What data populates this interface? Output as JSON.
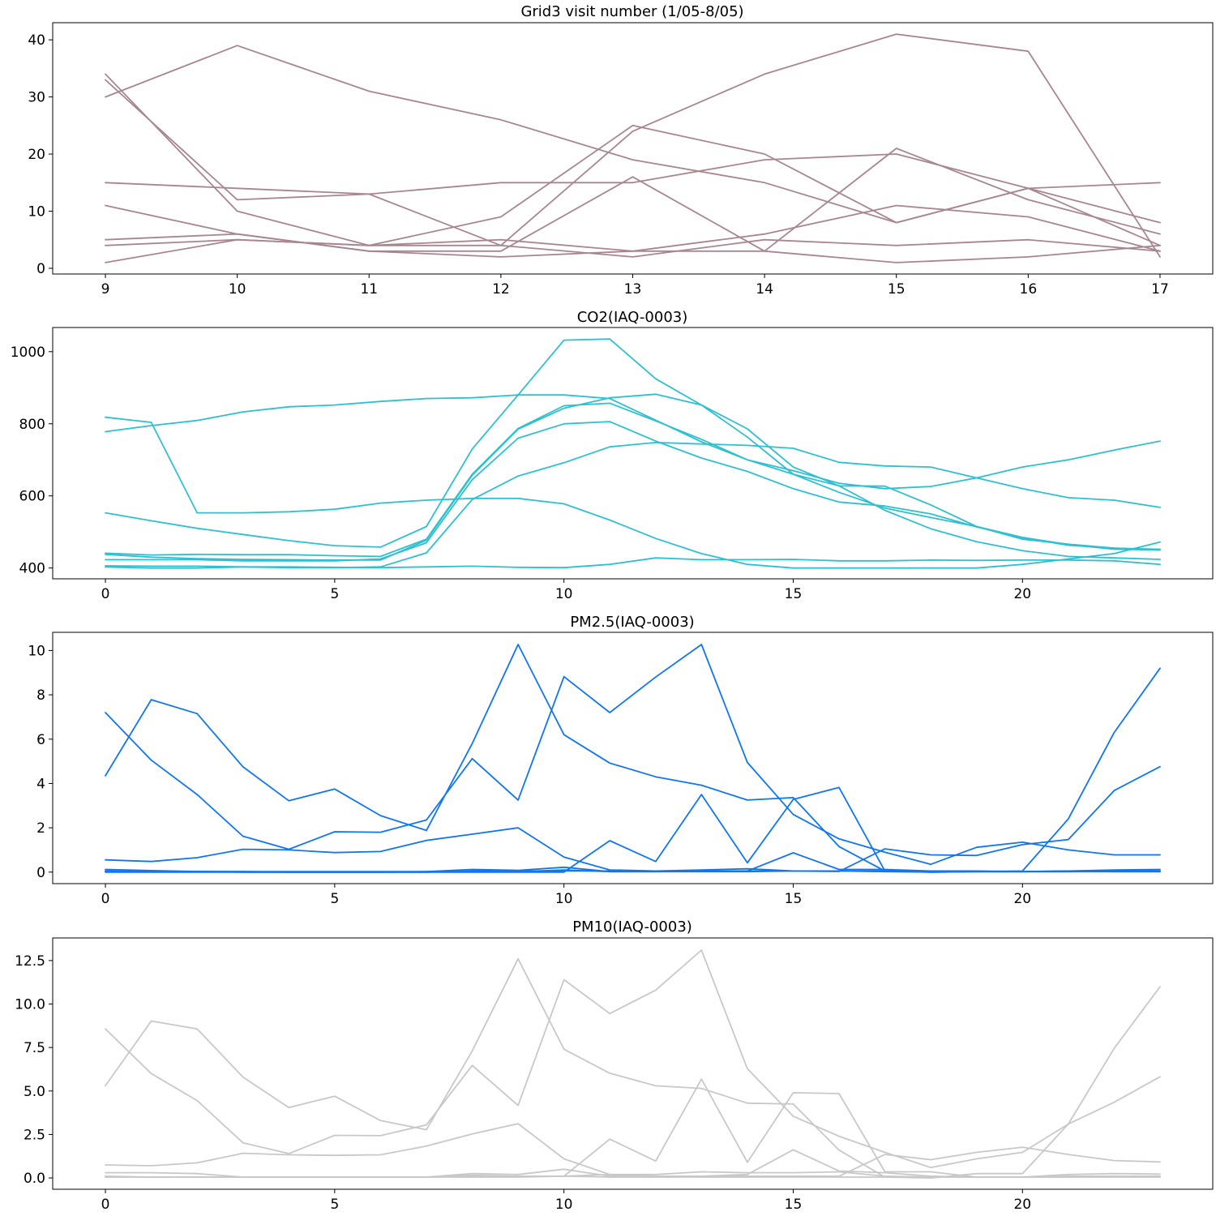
{
  "chart_data": [
    {
      "type": "line",
      "title": "Grid3 visit number (1/05-8/05)",
      "xlabel": "",
      "ylabel": "",
      "color": "#a8868f",
      "x": [
        9,
        10,
        11,
        12,
        13,
        14,
        15,
        16,
        17
      ],
      "xlim": [
        8.6,
        17.4
      ],
      "ylim": [
        -1,
        43
      ],
      "xticks": [
        "9",
        "10",
        "11",
        "12",
        "13",
        "14",
        "15",
        "16",
        "17"
      ],
      "yticks": [
        "0",
        "10",
        "20",
        "30",
        "40"
      ],
      "grid": false,
      "series": [
        {
          "values": [
            30,
            39,
            31,
            26,
            19,
            15,
            8,
            14,
            15
          ]
        },
        {
          "values": [
            34,
            10,
            4,
            9,
            25,
            20,
            8,
            14,
            4
          ]
        },
        {
          "values": [
            33,
            12,
            13,
            4,
            24,
            34,
            41,
            38,
            2
          ]
        },
        {
          "values": [
            15,
            14,
            13,
            15,
            15,
            19,
            20,
            14,
            8
          ]
        },
        {
          "values": [
            11,
            6,
            3,
            3,
            16,
            3,
            21,
            12,
            6
          ]
        },
        {
          "values": [
            5,
            6,
            3,
            2,
            3,
            6,
            11,
            9,
            3
          ]
        },
        {
          "values": [
            4,
            5,
            4,
            5,
            3,
            3,
            1,
            2,
            4
          ]
        },
        {
          "values": [
            1,
            5,
            4,
            4,
            2,
            5,
            4,
            5,
            3
          ]
        }
      ]
    },
    {
      "type": "line",
      "title": "CO2(IAQ-0003)",
      "xlabel": "",
      "ylabel": "",
      "color": "#2ec0d0",
      "x": [
        0,
        1,
        2,
        3,
        4,
        5,
        6,
        7,
        8,
        9,
        10,
        11,
        12,
        13,
        14,
        15,
        16,
        17,
        18,
        19,
        20,
        21,
        22,
        23
      ],
      "xlim": [
        -1.15,
        24.15
      ],
      "ylim": [
        370,
        1067
      ],
      "xticks": [
        "0",
        "5",
        "10",
        "15",
        "20"
      ],
      "xtick_values": [
        0,
        5,
        10,
        15,
        20
      ],
      "yticks": [
        "400",
        "600",
        "800",
        "1000"
      ],
      "grid": false,
      "series": [
        {
          "values": [
            778,
            795,
            809,
            833,
            847,
            852,
            862,
            870,
            872,
            880,
            880,
            870,
            810,
            750,
            700,
            670,
            635,
            620,
            626,
            650,
            680,
            700,
            727,
            752
          ]
        },
        {
          "values": [
            818,
            804,
            553,
            553,
            556,
            563,
            580,
            588,
            593,
            593,
            578,
            533,
            482,
            440,
            410,
            400,
            400,
            400,
            400,
            400,
            410,
            425,
            440,
            472
          ]
        },
        {
          "values": [
            553,
            531,
            510,
            493,
            476,
            462,
            458,
            515,
            730,
            880,
            1032,
            1035,
            925,
            852,
            786,
            680,
            628,
            627,
            575,
            515,
            480,
            466,
            455,
            452
          ]
        },
        {
          "values": [
            441,
            436,
            438,
            437,
            437,
            434,
            432,
            480,
            660,
            787,
            850,
            857,
            808,
            757,
            700,
            660,
            628,
            560,
            509,
            473,
            448,
            432,
            428,
            424
          ]
        },
        {
          "values": [
            438,
            430,
            426,
            424,
            423,
            422,
            422,
            477,
            657,
            785,
            843,
            872,
            882,
            852,
            763,
            660,
            610,
            566,
            540,
            515,
            485,
            465,
            452,
            450
          ]
        },
        {
          "values": [
            423,
            423,
            423,
            420,
            420,
            420,
            425,
            470,
            645,
            760,
            800,
            806,
            752,
            705,
            668,
            620,
            583,
            572,
            550,
            514,
            484,
            463,
            455,
            450
          ]
        },
        {
          "values": [
            406,
            405,
            405,
            403,
            401,
            401,
            403,
            442,
            590,
            655,
            692,
            736,
            748,
            744,
            740,
            732,
            693,
            683,
            680,
            650,
            620,
            595,
            588,
            568
          ]
        },
        {
          "values": [
            403,
            400,
            400,
            403,
            403,
            402,
            401,
            403,
            405,
            402,
            401,
            410,
            428,
            423,
            423,
            424,
            420,
            420,
            422,
            421,
            422,
            422,
            420,
            410
          ]
        }
      ]
    },
    {
      "type": "line",
      "title": "PM2.5(IAQ-0003)",
      "xlabel": "",
      "ylabel": "",
      "color": "#0f76f0",
      "x": [
        0,
        1,
        2,
        3,
        4,
        5,
        6,
        7,
        8,
        9,
        10,
        11,
        12,
        13,
        14,
        15,
        16,
        17,
        18,
        19,
        20,
        21,
        22,
        23
      ],
      "xlim": [
        -1.15,
        24.15
      ],
      "ylim": [
        -0.52,
        10.82
      ],
      "xticks": [
        "0",
        "5",
        "10",
        "15",
        "20"
      ],
      "xtick_values": [
        0,
        5,
        10,
        15,
        20
      ],
      "yticks": [
        "0",
        "2",
        "4",
        "6",
        "8",
        "10"
      ],
      "grid": false,
      "series": [
        {
          "values": [
            4.35,
            7.78,
            7.15,
            4.75,
            3.22,
            3.75,
            2.55,
            1.88,
            5.8,
            10.27,
            6.2,
            4.92,
            4.3,
            3.92,
            3.25,
            3.36,
            1.15,
            0.05,
            0.0,
            0.02,
            0.05,
            2.4,
            6.3,
            9.2
          ]
        },
        {
          "values": [
            7.2,
            5.05,
            3.5,
            1.62,
            1.03,
            1.82,
            1.8,
            2.35,
            5.12,
            3.25,
            8.82,
            7.2,
            8.8,
            10.27,
            4.95,
            2.6,
            1.5,
            0.9,
            0.35,
            1.12,
            1.35,
            1.0,
            0.78,
            0.78
          ]
        },
        {
          "values": [
            0.55,
            0.48,
            0.65,
            1.03,
            1.0,
            0.88,
            0.93,
            1.43,
            1.71,
            2.0,
            0.68,
            0.1,
            0.05,
            0.05,
            0.05,
            0.05,
            0.03,
            1.05,
            0.78,
            0.75,
            1.24,
            1.47,
            3.68,
            4.76
          ]
        },
        {
          "values": [
            0.12,
            0.07,
            0.03,
            0.0,
            0.0,
            0.0,
            0.0,
            0.0,
            0.0,
            0.0,
            0.0,
            1.42,
            0.48,
            3.5,
            0.42,
            3.28,
            3.82,
            0.05,
            0.05,
            0.02,
            0.02,
            0.05,
            0.1,
            0.12
          ]
        },
        {
          "values": [
            0.05,
            0.03,
            0.02,
            0.02,
            0.0,
            0.0,
            0.0,
            0.02,
            0.12,
            0.08,
            0.22,
            0.02,
            0.02,
            0.05,
            0.05,
            0.87,
            0.12,
            0.12,
            0.05,
            0.05,
            0.02,
            0.05,
            0.02,
            0.02
          ]
        },
        {
          "values": [
            0.0,
            0.0,
            0.0,
            0.0,
            0.0,
            0.0,
            0.0,
            0.0,
            0.05,
            0.05,
            0.05,
            0.05,
            0.05,
            0.1,
            0.15,
            0.05,
            0.05,
            0.02,
            0.0,
            0.02,
            0.02,
            0.02,
            0.05,
            0.05
          ]
        },
        {
          "values": [
            0.02,
            0.02,
            0.02,
            0.02,
            0.02,
            0.02,
            0.02,
            0.02,
            0.02,
            0.02,
            0.1,
            0.02,
            0.02,
            0.02,
            0.02,
            0.05,
            0.05,
            0.05,
            0.02,
            0.02,
            0.02,
            0.02,
            0.02,
            0.02
          ]
        }
      ]
    },
    {
      "type": "line",
      "title": "PM10(IAQ-0003)",
      "xlabel": "",
      "ylabel": "",
      "color": "#c8c8c8",
      "x": [
        0,
        1,
        2,
        3,
        4,
        5,
        6,
        7,
        8,
        9,
        10,
        11,
        12,
        13,
        14,
        15,
        16,
        17,
        18,
        19,
        20,
        21,
        22,
        23
      ],
      "xlim": [
        -1.15,
        24.15
      ],
      "ylim": [
        -0.65,
        13.8
      ],
      "xticks": [
        "0",
        "5",
        "10",
        "15",
        "20"
      ],
      "xtick_values": [
        0,
        5,
        10,
        15,
        20
      ],
      "yticks": [
        "0.0",
        "2.5",
        "5.0",
        "7.5",
        "10.0",
        "12.5"
      ],
      "ytick_values": [
        0,
        2.5,
        5,
        7.5,
        10,
        12.5
      ],
      "grid": false,
      "series": [
        {
          "values": [
            5.3,
            9.02,
            8.57,
            5.8,
            4.05,
            4.7,
            3.3,
            2.77,
            7.3,
            12.6,
            7.4,
            6.02,
            5.3,
            5.15,
            4.3,
            4.25,
            1.6,
            0.05,
            0.0,
            0.25,
            0.25,
            3.1,
            7.45,
            11.0
          ]
        },
        {
          "values": [
            8.57,
            6.0,
            4.45,
            2.02,
            1.4,
            2.45,
            2.43,
            3.05,
            6.47,
            4.17,
            11.4,
            9.45,
            10.8,
            13.1,
            6.28,
            3.55,
            2.4,
            1.47,
            0.6,
            1.1,
            1.47,
            3.1,
            4.35,
            5.82
          ]
        },
        {
          "values": [
            0.75,
            0.7,
            0.87,
            1.42,
            1.33,
            1.3,
            1.33,
            1.83,
            2.53,
            3.12,
            1.1,
            0.2,
            0.1,
            0.1,
            0.1,
            0.1,
            0.1,
            1.35,
            1.05,
            1.47,
            1.77,
            1.35,
            1.0,
            0.92
          ]
        },
        {
          "values": [
            0.3,
            0.3,
            0.25,
            0.05,
            0.05,
            0.05,
            0.05,
            0.05,
            0.15,
            0.1,
            0.1,
            2.23,
            0.97,
            5.68,
            0.9,
            4.9,
            4.85,
            0.35,
            0.35,
            0.05,
            0.05,
            0.2,
            0.25,
            0.22
          ]
        },
        {
          "values": [
            0.1,
            0.05,
            0.05,
            0.05,
            0.05,
            0.05,
            0.05,
            0.05,
            0.25,
            0.2,
            0.5,
            0.1,
            0.1,
            0.1,
            0.2,
            1.62,
            0.4,
            0.3,
            0.1,
            0.05,
            0.05,
            0.1,
            0.1,
            0.1
          ]
        },
        {
          "values": [
            0.05,
            0.05,
            0.05,
            0.05,
            0.05,
            0.05,
            0.05,
            0.05,
            0.1,
            0.1,
            0.1,
            0.2,
            0.2,
            0.35,
            0.3,
            0.3,
            0.35,
            0.1,
            0.05,
            0.05,
            0.05,
            0.05,
            0.1,
            0.1
          ]
        },
        {
          "values": [
            0.05,
            0.05,
            0.05,
            0.05,
            0.05,
            0.05,
            0.05,
            0.05,
            0.05,
            0.05,
            0.1,
            0.05,
            0.05,
            0.05,
            0.05,
            0.05,
            0.05,
            0.05,
            0.05,
            0.05,
            0.05,
            0.05,
            0.05,
            0.05
          ]
        }
      ]
    }
  ]
}
